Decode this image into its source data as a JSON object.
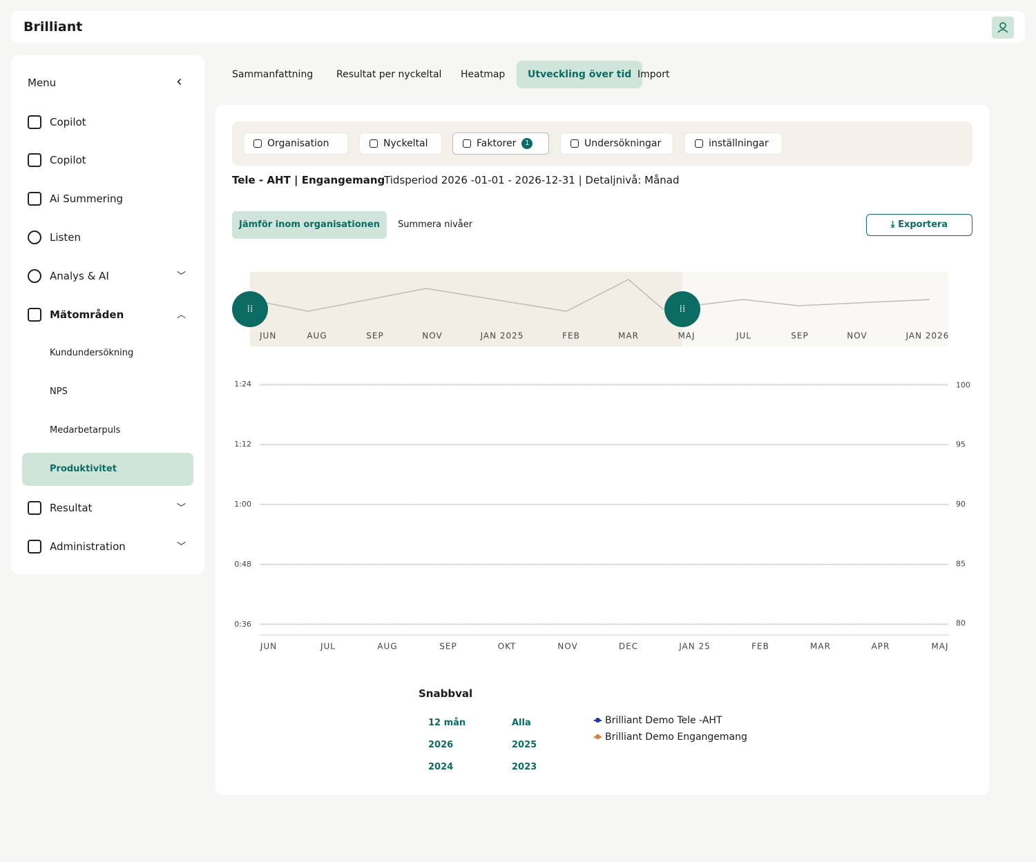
{
  "header": {
    "logo": "Brilliant"
  },
  "sidebar": {
    "title": "Menu",
    "items": [
      "Copilot",
      "Copilot",
      "Ai Summering",
      "Listen",
      "Analys & AI",
      "Mätområden"
    ],
    "subitems": [
      "Kundundersökning",
      "NPS",
      "Medarbetarpuls",
      "Produktivitet"
    ],
    "items_after": [
      "Resultat",
      "Administration"
    ]
  },
  "tabs": [
    "Sammanfattning",
    "Resultat per nyckeltal",
    "Heatmap",
    "Utveckling över tid",
    "Import"
  ],
  "filters": [
    "Organisation",
    "Nyckeltal",
    "Faktorer",
    "Undersökningar",
    "inställningar"
  ],
  "filter_badge": "1",
  "summary": {
    "title": "Tele - AHT | Engangemang",
    "period": "Tidsperiod 2026 -01-01 - 2026-12-31 | Detaljnivå: Månad"
  },
  "toggles": [
    "Jämför inom organisationen",
    "Summera nivåer"
  ],
  "export": "Exportera",
  "navigator": {
    "labels": [
      "JUN",
      "AUG",
      "SEP",
      "NOV",
      "JAN 2025",
      "FEB",
      "MAR",
      "MAJ",
      "JUL",
      "SEP",
      "NOV",
      "JAN 2026"
    ]
  },
  "chart_data": {
    "type": "line",
    "categories": [
      "JUN",
      "JUL",
      "AUG",
      "SEP",
      "OKT",
      "NOV",
      "DEC",
      "JAN 25",
      "FEB",
      "MAR",
      "APR",
      "MAJ"
    ],
    "ylim": [
      36,
      84
    ],
    "yticks": [
      {
        "value": 84,
        "label": "1:24"
      },
      {
        "value": 72,
        "label": "1:12"
      },
      {
        "value": 60,
        "label": "1:00"
      },
      {
        "value": 48,
        "label": "0:48"
      },
      {
        "value": 36,
        "label": "0:36"
      }
    ],
    "y2lim": [
      79,
      101
    ],
    "y2ticks": [
      100,
      95,
      90,
      85,
      80
    ],
    "series": [
      {
        "name": "Brilliant Demo Tele -AHT",
        "color": "#1f3aa6"
      },
      {
        "name": "Brilliant Demo Engangemang",
        "color": "#e07b39"
      }
    ]
  },
  "quick": {
    "title": "Snabbval",
    "options": [
      "12 mån",
      "Alla",
      "2026",
      "2025",
      "2024",
      "2023"
    ]
  }
}
